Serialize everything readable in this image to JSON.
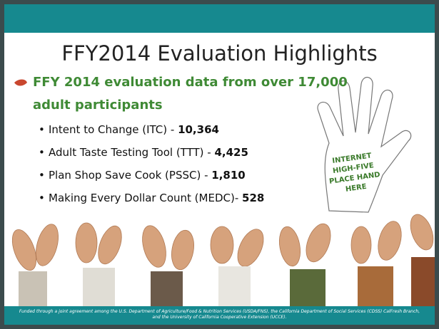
{
  "slide": {
    "title": "FFY2014 Evaluation Highlights",
    "main_bullet": {
      "line1": "FFY 2014 evaluation data from over 17,000",
      "line2": "adult participants"
    },
    "items": [
      {
        "label": "Intent to Change (ITC) - ",
        "value": "10,364"
      },
      {
        "label": "Adult Taste Testing Tool (TTT) -  ",
        "value": "4,425"
      },
      {
        "label": "Plan Shop Save Cook (PSSC) -  ",
        "value": "1,810"
      },
      {
        "label": "Making Every Dollar Count (MEDC)- ",
        "value": "528"
      }
    ],
    "hand_text": [
      "INTERNET",
      "HIGH-FIVE",
      "PLACE HAND",
      "HERE"
    ],
    "footer": [
      "Funded through a joint agreement among the U.S. Department of Agriculture/Food & Nutrition Services (USDA/FNS), the California Department of Social Services (CDSS) CalFresh Branch,",
      "and the University of California Cooperative Extension (UCCE)."
    ]
  }
}
